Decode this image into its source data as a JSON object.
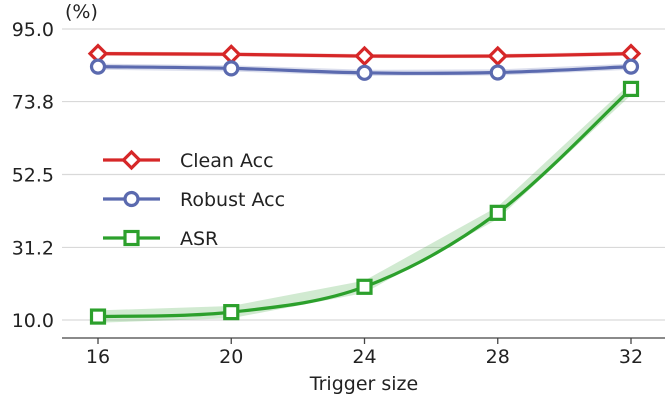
{
  "chart_data": {
    "type": "line",
    "x": [
      16,
      20,
      24,
      28,
      32
    ],
    "xlabel": "Trigger size",
    "ylabel": "(%)",
    "yticks": [
      10.0,
      31.2,
      52.5,
      73.8,
      95.0
    ],
    "ytick_labels": [
      "10.0",
      "31.2",
      "52.5",
      "73.8",
      "95.0"
    ],
    "ylim": [
      10.0,
      95.0
    ],
    "grid": "horizontal",
    "legend_position": "center-left",
    "series": [
      {
        "name": "Clean Acc",
        "values": [
          87.8,
          87.6,
          87.1,
          87.1,
          87.8
        ],
        "color": "#d62728",
        "marker": "diamond",
        "band": 0.6
      },
      {
        "name": "Robust Acc",
        "values": [
          84.0,
          83.5,
          82.2,
          82.3,
          84.0
        ],
        "color": "#5b6aaf",
        "marker": "circle",
        "band": 0.9
      },
      {
        "name": "ASR",
        "values": [
          11.0,
          12.3,
          19.7,
          41.3,
          77.5
        ],
        "color": "#2ca02c",
        "marker": "square",
        "band": 1.8
      }
    ]
  }
}
